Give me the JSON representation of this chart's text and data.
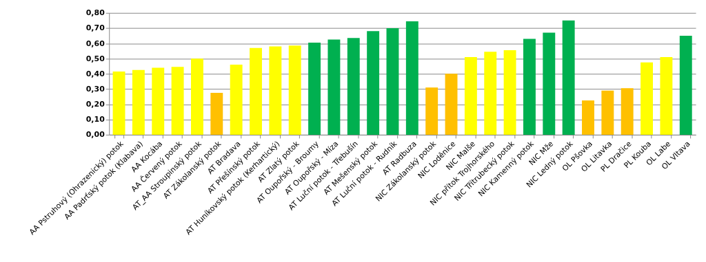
{
  "chart_data": {
    "type": "bar",
    "categories": [
      "AA Pstruhový (Ohrazenický) potok",
      "AA Padrťský potok (Klabava)",
      "AA Kocába",
      "AA Červený potok",
      "AT_AA Stroupinský potok",
      "AT Zákolanský potok",
      "AT Bradava",
      "AT Přešínský potok",
      "AT Huníkovský potok (Kerhartický)",
      "AT Zlatý potok",
      "AT Oupořský - Broumy",
      "AT Oupořský - Míza",
      "AT Luční potok - Třebušín",
      "AT Mešenský potok",
      "AT Luční potok - Rudník",
      "AT Radbuza",
      "NIC Zákolanský potok",
      "NIC Loděnice",
      "NIC Malše",
      "NIC přítok Trojhorského",
      "NIC Třítrubecký potok",
      "NIC Kamenný potok",
      "NIC Mže",
      "NIC Ledný potok",
      "OL Pšovka",
      "OL Litavka",
      "PL Dračice",
      "PL Kouba",
      "OL Labe",
      "OL Vltava"
    ],
    "values": [
      0.415,
      0.425,
      0.44,
      0.445,
      0.5,
      0.275,
      0.46,
      0.57,
      0.58,
      0.585,
      0.605,
      0.625,
      0.635,
      0.68,
      0.7,
      0.745,
      0.31,
      0.4,
      0.51,
      0.545,
      0.555,
      0.63,
      0.67,
      0.75,
      0.225,
      0.29,
      0.305,
      0.475,
      0.51,
      0.65
    ],
    "colors": [
      "#ffff00",
      "#ffff00",
      "#ffff00",
      "#ffff00",
      "#ffff00",
      "#ffc000",
      "#ffff00",
      "#ffff00",
      "#ffff00",
      "#ffff00",
      "#00b050",
      "#00b050",
      "#00b050",
      "#00b050",
      "#00b050",
      "#00b050",
      "#ffc000",
      "#ffc000",
      "#ffff00",
      "#ffff00",
      "#ffff00",
      "#00b050",
      "#00b050",
      "#00b050",
      "#ffc000",
      "#ffc000",
      "#ffc000",
      "#ffff00",
      "#ffff00",
      "#00b050"
    ],
    "ylim": [
      0,
      0.8
    ],
    "yticks": [
      {
        "value": 0,
        "label": "0,00"
      },
      {
        "value": 0.1,
        "label": "0,10"
      },
      {
        "value": 0.2,
        "label": "0,20"
      },
      {
        "value": 0.3,
        "label": "0,30"
      },
      {
        "value": 0.4,
        "label": "0,40"
      },
      {
        "value": 0.5,
        "label": "0,50"
      },
      {
        "value": 0.6,
        "label": "0,60"
      },
      {
        "value": 0.7,
        "label": "0,70"
      },
      {
        "value": 0.8,
        "label": "0,80"
      }
    ],
    "grid": "y"
  }
}
